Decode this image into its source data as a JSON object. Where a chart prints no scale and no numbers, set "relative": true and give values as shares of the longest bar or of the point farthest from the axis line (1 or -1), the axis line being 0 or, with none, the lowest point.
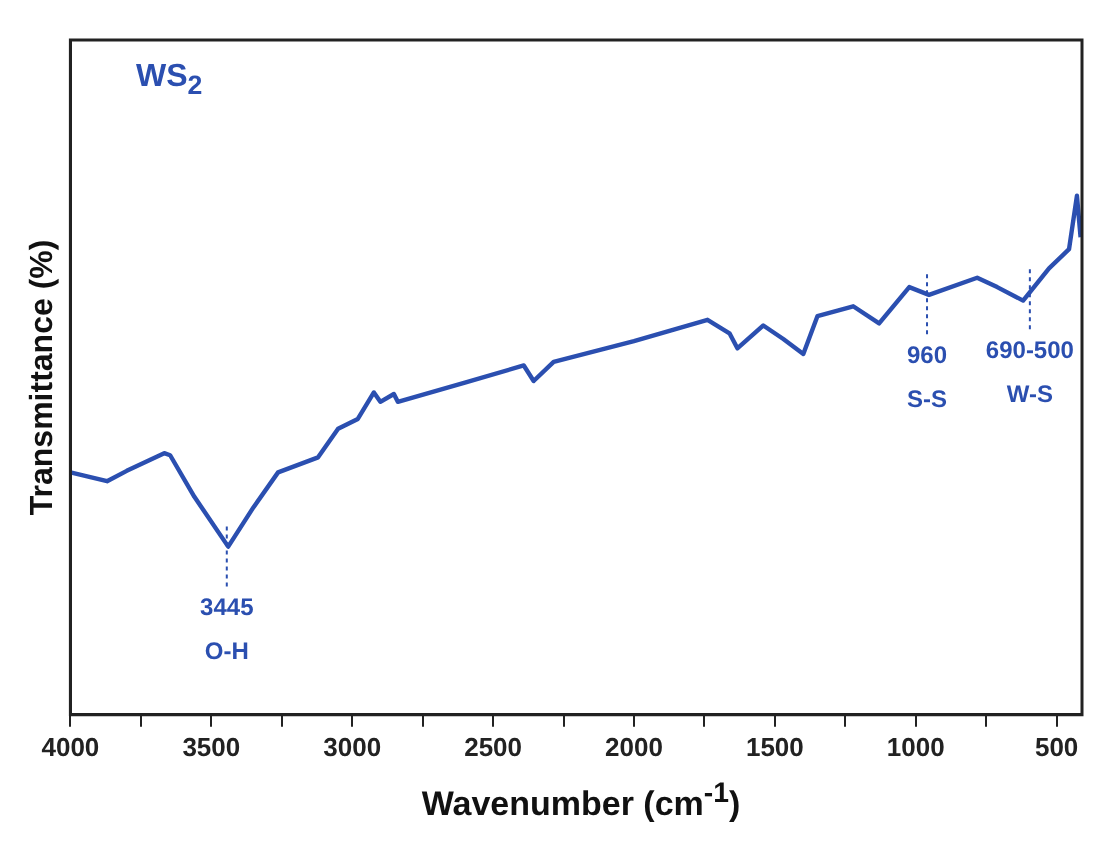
{
  "chart_data": {
    "type": "line",
    "title": "WS$_{2}$",
    "xlabel": "Wavenumber (cm$^{-1}$)",
    "ylabel": "Transmittance (%)",
    "relative": true,
    "xlim": [
      4000,
      410
    ],
    "xticks": [
      4000,
      {
        "value": 3750,
        "label": null
      },
      3500,
      {
        "value": 3250,
        "label": null
      },
      3000,
      {
        "value": 2750,
        "label": null
      },
      2500,
      {
        "value": 2250,
        "label": null
      },
      2000,
      {
        "value": 1750,
        "label": null
      },
      1500,
      {
        "value": 1250,
        "label": null
      },
      1000,
      {
        "value": 750,
        "label": null
      },
      500
    ],
    "x": [
      4000,
      3870,
      3800,
      3667,
      3646,
      3560,
      3440,
      3350,
      3263,
      3121,
      3050,
      2980,
      2923,
      2900,
      2852,
      2838,
      2600,
      2391,
      2356,
      2285,
      2000,
      1739,
      1661,
      1633,
      1541,
      1470,
      1399,
      1349,
      1222,
      1130,
      1023,
      953,
      782,
      711,
      619,
      527,
      456,
      428,
      415
    ],
    "series": [
      {
        "color": "#2b4fb0",
        "values": [
          0.467,
          0.45,
          0.47,
          0.504,
          0.5,
          0.42,
          0.324,
          0.4,
          0.467,
          0.496,
          0.551,
          0.57,
          0.621,
          0.603,
          0.618,
          0.603,
          0.64,
          0.673,
          0.643,
          0.68,
          0.72,
          0.761,
          0.735,
          0.706,
          0.75,
          0.724,
          0.695,
          0.768,
          0.787,
          0.754,
          0.824,
          0.809,
          0.842,
          0.824,
          0.798,
          0.86,
          0.897,
          1.0,
          0.92
        ]
      }
    ],
    "annotations": [
      {
        "text": "3445\nO-H",
        "x": 3445,
        "y": 0.324
      },
      {
        "text": "960\nS-S",
        "x": 960,
        "y": 0.81
      },
      {
        "text": "690-500\nW-S",
        "x": 595,
        "y": 0.82
      }
    ],
    "marker": "none",
    "line_style": "solid",
    "grid": false,
    "legend": false
  }
}
